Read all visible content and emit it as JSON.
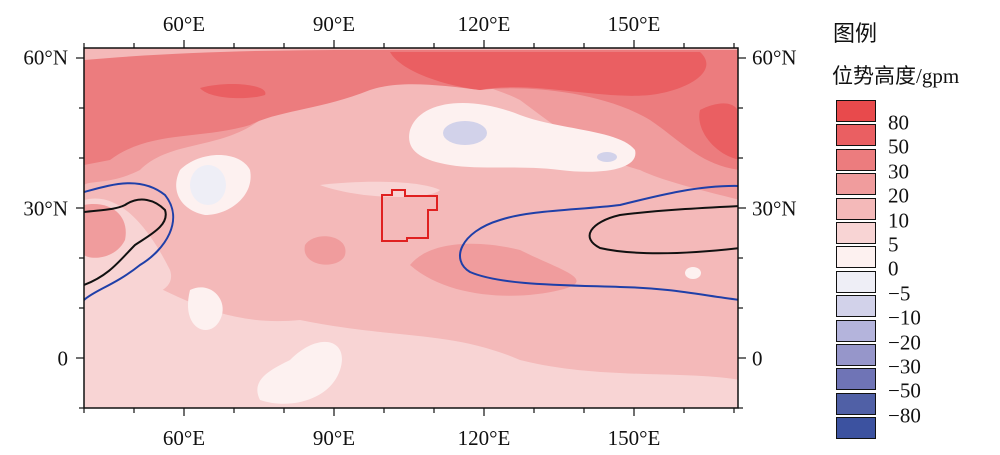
{
  "map": {
    "top_lon_labels": [
      "60°E",
      "90°E",
      "120°E",
      "150°E"
    ],
    "bottom_lon_labels": [
      "60°E",
      "90°E",
      "120°E",
      "150°E"
    ],
    "left_lat_labels": [
      "60°N",
      "30°N",
      "0"
    ],
    "right_lat_labels": [
      "60°N",
      "30°N",
      "0"
    ]
  },
  "legend": {
    "title": "图例",
    "unit": "位势高度/gpm",
    "levels": [
      "80",
      "50",
      "30",
      "20",
      "10",
      "5",
      "0",
      "−5",
      "−10",
      "−20",
      "−30",
      "−50",
      "−80"
    ],
    "colors": [
      "#e84a4c",
      "#ea5f62",
      "#ec7c7e",
      "#f09c9d",
      "#f4b9b9",
      "#f8d4d4",
      "#fdf1f0",
      "#eeeef6",
      "#d2d2ea",
      "#b4b4dc",
      "#9696ca",
      "#6f74b6",
      "#5060a6",
      "#3c52a0"
    ]
  },
  "colors": {
    "blue_contour": "#1f3fa8",
    "black_contour": "#111111",
    "region_box": "#e02020"
  }
}
